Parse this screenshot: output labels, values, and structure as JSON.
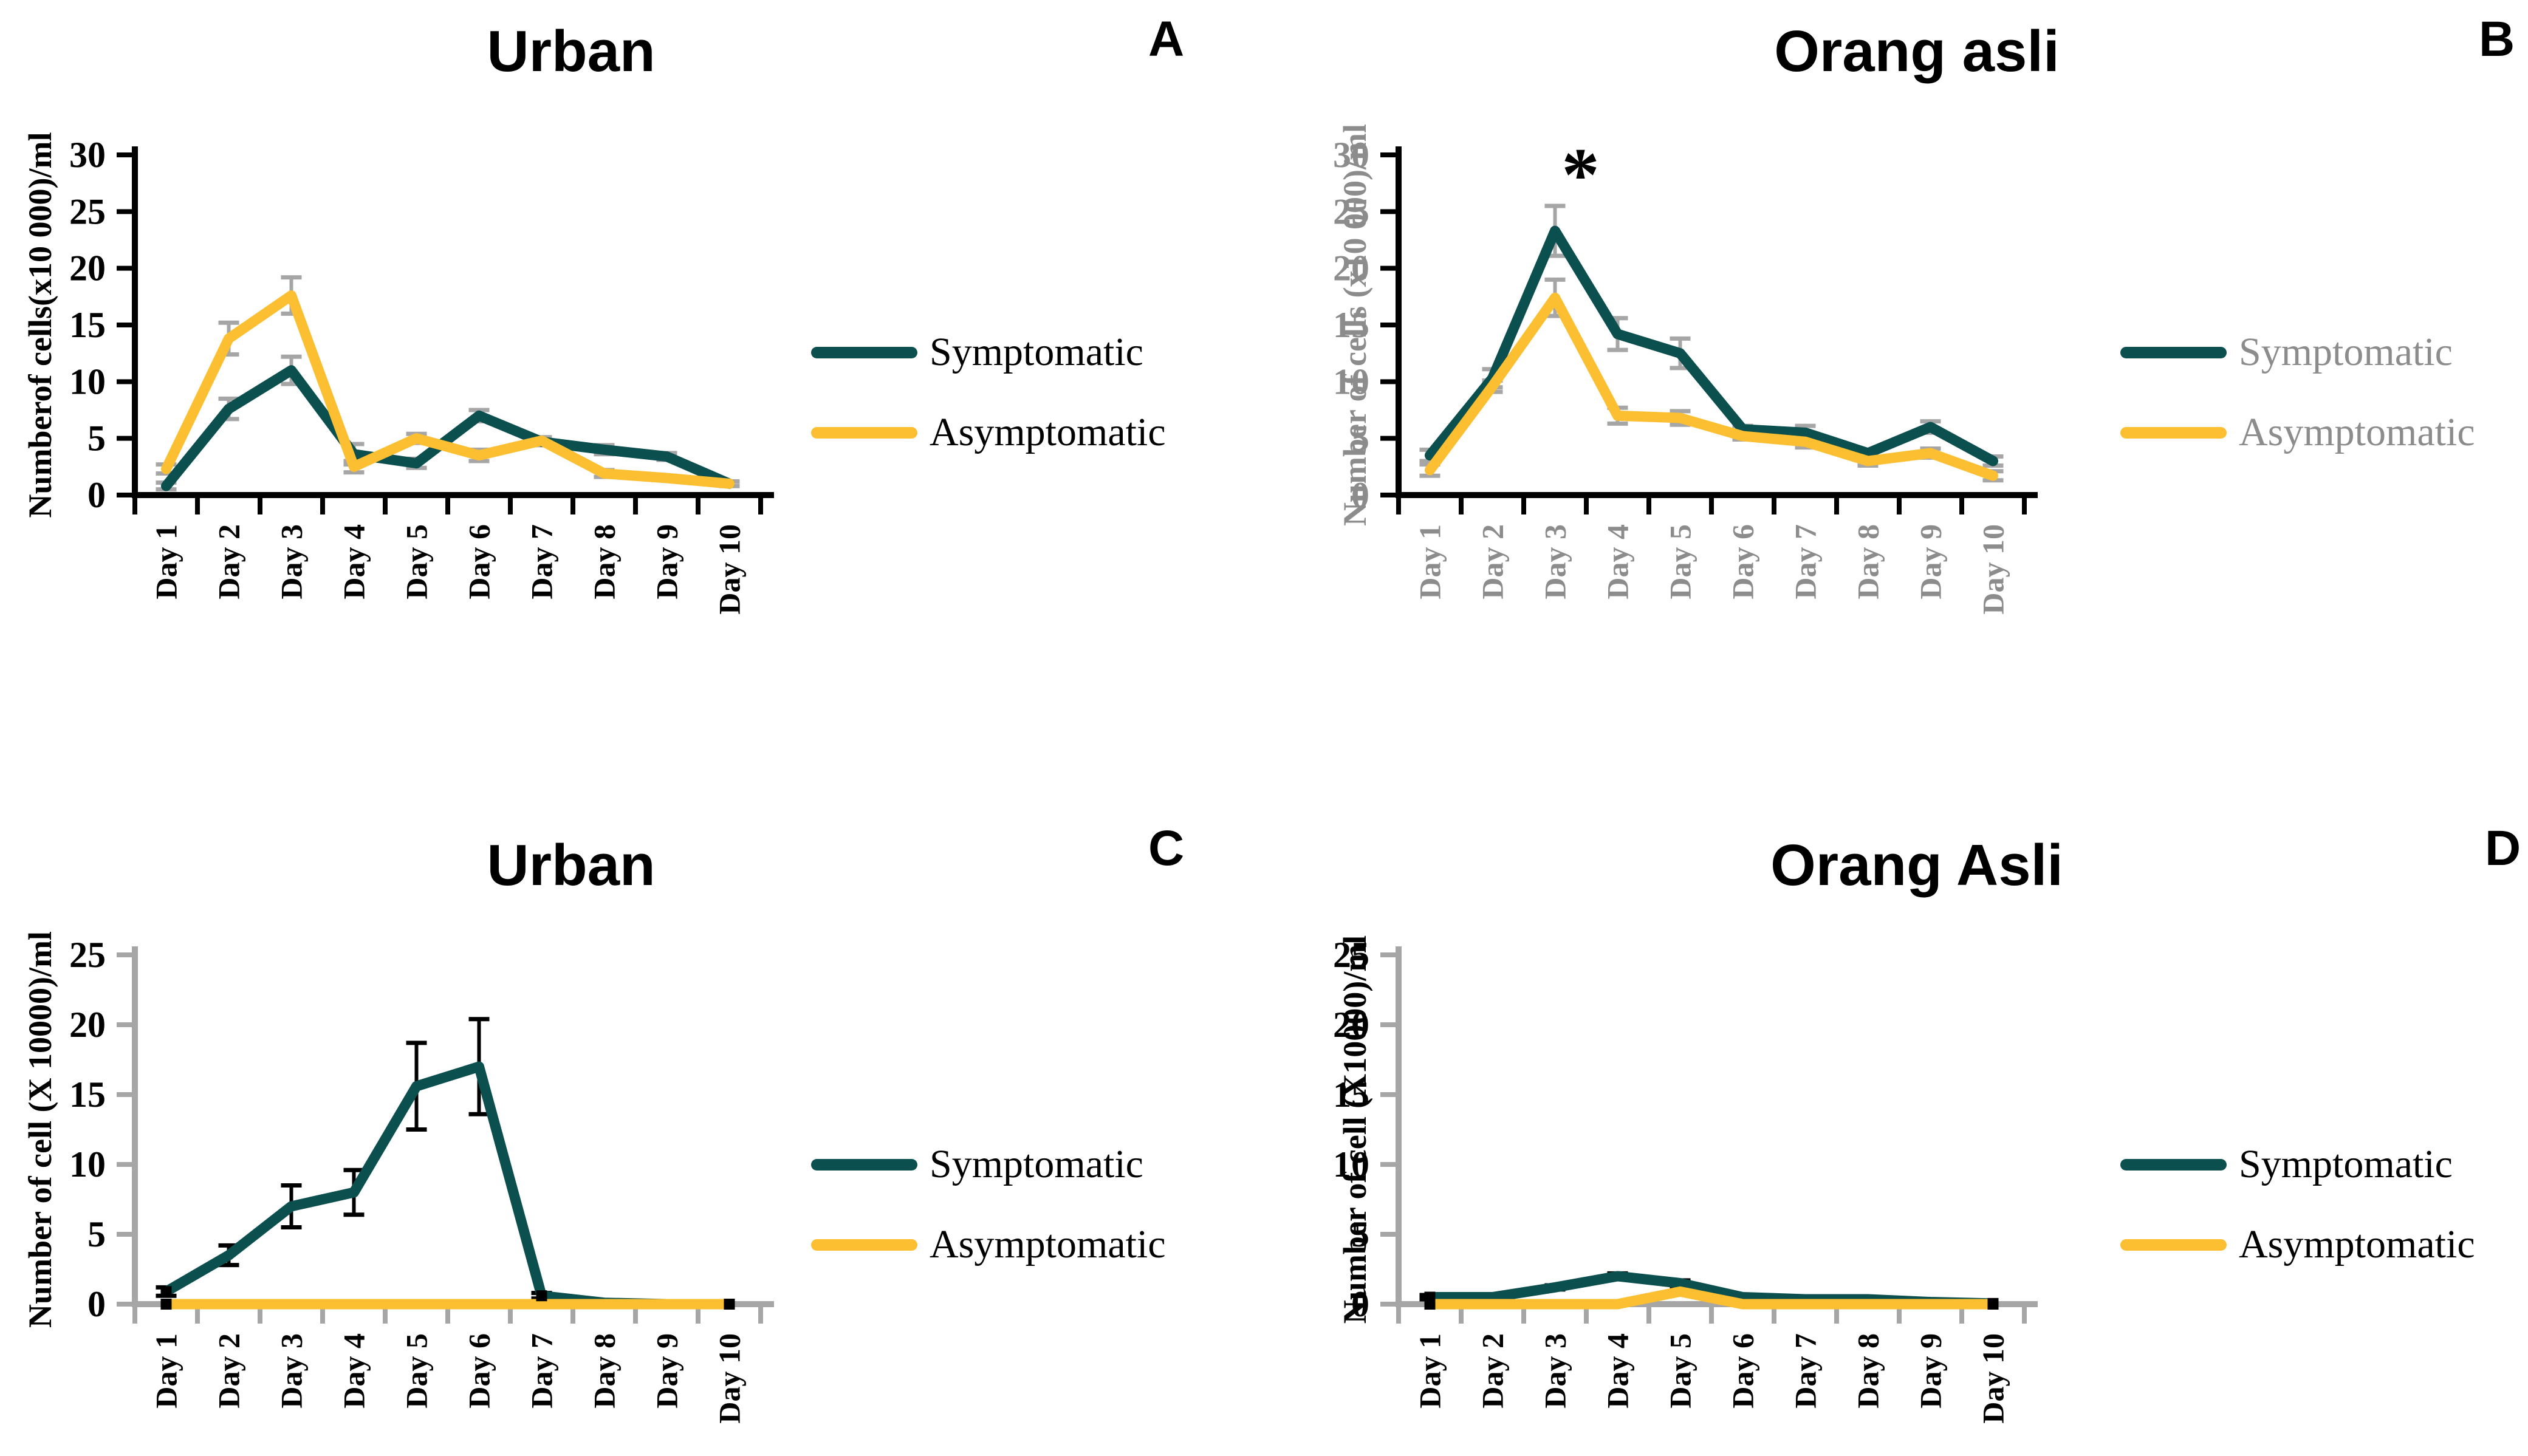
{
  "chart_data": [
    {
      "panel_label": "A",
      "title": "Urban",
      "type": "line",
      "ylabel": "Numberof cells(x10 000)/ml",
      "ylim": [
        0,
        30
      ],
      "ytick_step": 5,
      "categories": [
        "Day 1",
        "Day 2",
        "Day 3",
        "Day 4",
        "Day 5",
        "Day 6",
        "Day 7",
        "Day 8",
        "Day 9",
        "Day 10"
      ],
      "axis_color": "#000000",
      "tick_label_color": "#000000",
      "ylabel_color": "#000000",
      "error_bar_color": "#A6A6A6",
      "legend": {
        "text_color": "#000000",
        "items": [
          {
            "label": "Symptomatic",
            "color": "#0B4F4E"
          },
          {
            "label": "Asymptomatic",
            "color": "#FBBF31"
          }
        ]
      },
      "annotation": null,
      "series": [
        {
          "name": "Symptomatic",
          "color": "#0B4F4E",
          "values": [
            0.8,
            7.6,
            11.0,
            3.6,
            2.8,
            7.0,
            4.7,
            4.0,
            3.4,
            1.0
          ],
          "errors": [
            0.3,
            0.9,
            1.2,
            0.9,
            0.4,
            0.5,
            0.3,
            0.4,
            0.3,
            0.2
          ],
          "marker_indices": []
        },
        {
          "name": "Asymptomatic",
          "color": "#FBBF31",
          "values": [
            2.3,
            13.8,
            17.6,
            2.5,
            5.0,
            3.5,
            4.8,
            1.9,
            1.5,
            1.0
          ],
          "errors": [
            0.4,
            1.4,
            1.6,
            0.5,
            0.4,
            0.5,
            0.3,
            0.3,
            0.2,
            0.2
          ],
          "marker_indices": []
        }
      ]
    },
    {
      "panel_label": "B",
      "title": "Orang asli",
      "type": "line",
      "ylabel": "Number of cells (x10 000)/ml",
      "ylim": [
        0,
        30
      ],
      "ytick_step": 5,
      "categories": [
        "Day 1",
        "Day 2",
        "Day 3",
        "Day 4",
        "Day 5",
        "Day 6",
        "Day 7",
        "Day 8",
        "Day 9",
        "Day 10"
      ],
      "axis_color": "#000000",
      "tick_label_color": "#8C8C8C",
      "ylabel_color": "#8C8C8C",
      "error_bar_color": "#A6A6A6",
      "legend": {
        "text_color": "#8C8C8C",
        "items": [
          {
            "label": "Symptomatic",
            "color": "#0B4F4E"
          },
          {
            "label": "Asymptomatic",
            "color": "#FBBF31"
          }
        ]
      },
      "annotation": {
        "text": "*",
        "category_index": 2,
        "y": 28.2
      },
      "series": [
        {
          "name": "Symptomatic",
          "color": "#0B4F4E",
          "values": [
            3.5,
            10.3,
            23.3,
            14.2,
            12.5,
            5.8,
            5.5,
            3.7,
            6.0,
            3.0
          ],
          "errors": [
            0.5,
            0.8,
            2.2,
            1.4,
            1.3,
            0.3,
            0.6,
            0.3,
            0.5,
            0.4
          ],
          "marker_indices": []
        },
        {
          "name": "Asymptomatic",
          "color": "#FBBF31",
          "values": [
            2.2,
            9.6,
            17.4,
            7.0,
            6.8,
            5.2,
            4.7,
            3.0,
            3.7,
            1.7
          ],
          "errors": [
            0.5,
            0.5,
            1.6,
            0.7,
            0.6,
            0.3,
            0.5,
            0.4,
            0.4,
            0.4
          ],
          "marker_indices": []
        }
      ]
    },
    {
      "panel_label": "C",
      "title": "Urban",
      "type": "line",
      "ylabel": "Number of cell (X 10000)/ml",
      "ylim": [
        0,
        25
      ],
      "ytick_step": 5,
      "categories": [
        "Day 1",
        "Day 2",
        "Day 3",
        "Day 4",
        "Day 5",
        "Day 6",
        "Day 7",
        "Day 8",
        "Day 9",
        "Day 10"
      ],
      "axis_color": "#A6A6A6",
      "tick_label_color": "#000000",
      "ylabel_color": "#000000",
      "error_bar_color": "#000000",
      "legend": {
        "text_color": "#000000",
        "items": [
          {
            "label": "Symptomatic",
            "color": "#0B4F4E"
          },
          {
            "label": "Asymptomatic",
            "color": "#FBBF31"
          }
        ]
      },
      "annotation": null,
      "series": [
        {
          "name": "Symptomatic",
          "color": "#0B4F4E",
          "values": [
            0.9,
            3.5,
            7.0,
            8.0,
            15.6,
            17.0,
            0.6,
            0.1,
            0.0,
            0.0
          ],
          "errors": [
            0.3,
            0.7,
            1.5,
            1.6,
            3.1,
            3.4,
            0.2,
            0,
            0,
            0
          ],
          "marker_indices": [
            0,
            6,
            9
          ]
        },
        {
          "name": "Asymptomatic",
          "color": "#FBBF31",
          "values": [
            0,
            0,
            0,
            0,
            0,
            0,
            0,
            0,
            0,
            0
          ],
          "errors": [
            0,
            0,
            0,
            0,
            0,
            0,
            0,
            0,
            0,
            0
          ],
          "marker_indices": [
            0,
            9
          ]
        }
      ]
    },
    {
      "panel_label": "D",
      "title": "Orang Asli",
      "type": "line",
      "ylabel": "Number of cell (X10000)/ml",
      "ylim": [
        0,
        25
      ],
      "ytick_step": 5,
      "categories": [
        "Day 1",
        "Day 2",
        "Day 3",
        "Day 4",
        "Day 5",
        "Day 6",
        "Day 7",
        "Day 8",
        "Day 9",
        "Day 10"
      ],
      "axis_color": "#A6A6A6",
      "tick_label_color": "#000000",
      "ylabel_color": "#000000",
      "error_bar_color": "#000000",
      "legend": {
        "text_color": "#000000",
        "items": [
          {
            "label": "Symptomatic",
            "color": "#0B4F4E"
          },
          {
            "label": "Asymptomatic",
            "color": "#FBBF31"
          }
        ]
      },
      "annotation": null,
      "series": [
        {
          "name": "Symptomatic",
          "color": "#0B4F4E",
          "values": [
            0.5,
            0.5,
            1.2,
            2.0,
            1.5,
            0.5,
            0.35,
            0.35,
            0.15,
            0.05
          ],
          "errors": [
            0.15,
            0.1,
            0.15,
            0.2,
            0.2,
            0.1,
            0,
            0,
            0,
            0
          ],
          "marker_indices": [
            0,
            9
          ]
        },
        {
          "name": "Asymptomatic",
          "color": "#FBBF31",
          "values": [
            0,
            0,
            0,
            0,
            0.9,
            0,
            0,
            0,
            0,
            0
          ],
          "errors": [
            0,
            0,
            0,
            0,
            0.1,
            0,
            0,
            0,
            0,
            0
          ],
          "marker_indices": [
            0,
            9
          ]
        }
      ]
    }
  ]
}
